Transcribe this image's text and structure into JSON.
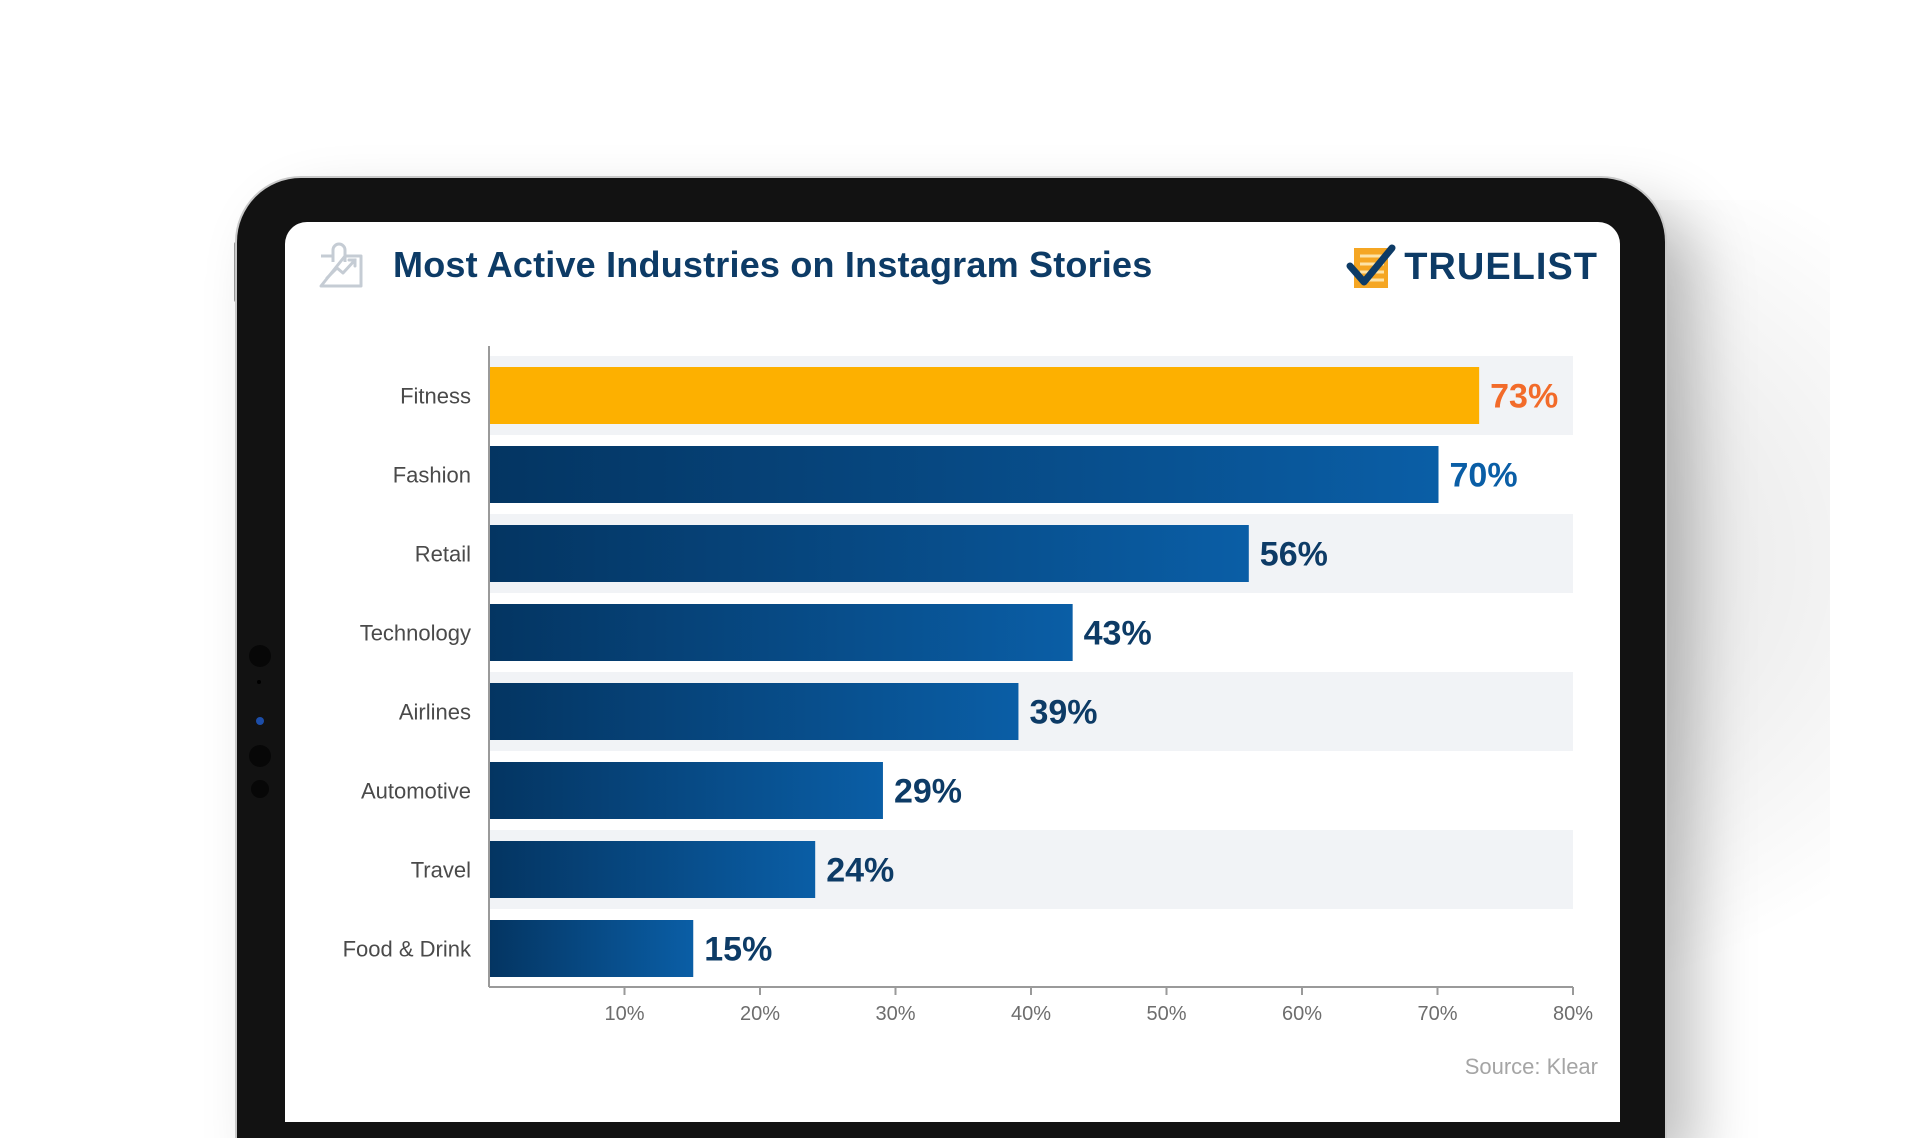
{
  "page": {
    "title": "Most Active Industries on Instagram Stories",
    "brand": "TRUELIST",
    "source": "Source: Klear",
    "icons": {
      "title_icon": "chart-bag-icon",
      "brand_icon": "checkmark-list-icon"
    }
  },
  "colors": {
    "title": "#0d3b66",
    "highlight_bar": "#fdb000",
    "highlight_label": "#f26b2a",
    "bar_dark": "#043562",
    "bar_light": "#0a5ea6",
    "band": "#f1f3f6",
    "axis": "#9a9a9a",
    "tick_label": "#6d6d6d",
    "category_label": "#4a4a4a"
  },
  "chart_data": {
    "type": "bar",
    "orientation": "horizontal",
    "title": "Most Active Industries on Instagram Stories",
    "categories": [
      "Fitness",
      "Fashion",
      "Retail",
      "Technology",
      "Airlines",
      "Automotive",
      "Travel",
      "Food & Drink"
    ],
    "values": [
      73,
      70,
      56,
      43,
      39,
      29,
      24,
      15
    ],
    "value_labels": [
      "73%",
      "70%",
      "56%",
      "43%",
      "39%",
      "29%",
      "24%",
      "15%"
    ],
    "highlighted": "Fitness",
    "xlabel": "",
    "ylabel": "",
    "xlim": [
      0,
      80
    ],
    "xticks": [
      10,
      20,
      30,
      40,
      50,
      60,
      70,
      80
    ],
    "xtick_labels": [
      "10%",
      "20%",
      "30%",
      "40%",
      "50%",
      "60%",
      "70%",
      "80%"
    ],
    "grid": false,
    "alternating_bands": true,
    "source": "Klear"
  }
}
